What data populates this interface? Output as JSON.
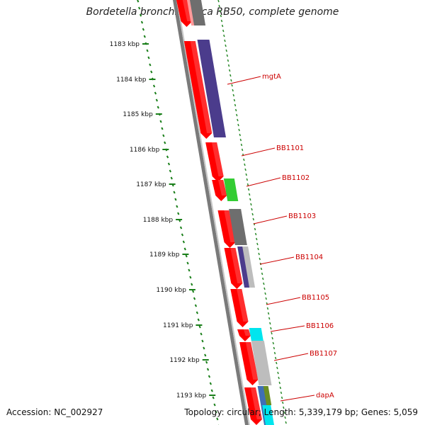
{
  "title": "Bordetella bronchiseptica RB50, complete genome",
  "footer": {
    "accession": "Accession: NC_002927",
    "topology": "Topology: circular; Length: 5,339,179 bp; Genes: 5,059"
  },
  "scale_labels": [
    "1183 kbp",
    "1184 kbp",
    "1185 kbp",
    "1186 kbp",
    "1187 kbp",
    "1188 kbp",
    "1189 kbp",
    "1190 kbp",
    "1191 kbp",
    "1192 kbp",
    "1193 kbp"
  ],
  "gene_labels": [
    "mgtA",
    "BB1101",
    "BB1102",
    "BB1103",
    "BB1104",
    "BB1105",
    "BB1106",
    "BB1107",
    "dapA"
  ],
  "colors": {
    "cds": "#ff0000",
    "cog_purple": "#4b3c8c",
    "cog_green": "#33cc33",
    "cog_gray": "#6e6e6e",
    "cog_lightgray": "#bdbdbd",
    "cog_cyan": "#00e5ee",
    "cog_blue": "#3f6fb5",
    "cog_olive": "#6b8e23",
    "tick_green": "#1a7f1a",
    "label_line": "#cc0000"
  }
}
